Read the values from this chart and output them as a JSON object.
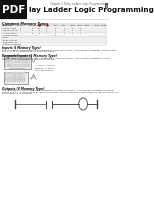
{
  "title": "lay Ladder Logic Programming",
  "chapter_header": "Chapter 4 Relay Ladder Logic Programming",
  "page_num": "8",
  "section1": "Common Memory Types",
  "pdf_label": "PDF",
  "bg_color": "#ffffff",
  "header_bg": "#111111",
  "section2_title": "Inputs (I Memory Type)",
  "section2_text": "The GS digital input points are designated I memory types.  The number of digital I input points\nare 4, 6, or 10 depending on each GS model.",
  "section3_title": "Keypads/Inputs (2 Memory Type)",
  "section3_text": "The GS digital input points are designated 2 memory types.  The number of digital 2 input\npoints are 4 depending on GS10 type model.",
  "section4_title": "Outputs (0 Memory Type)",
  "section4_text": "The GS digital output points are designated O memory types.  The number of digital O output\npoints are 4 or 8 depending on each GS model. In the example, output point 01 will be turned on\nwhen input I1 is enabled.",
  "accent_color": "#cc0000",
  "ladder_color": "#444444",
  "table_line_color": "#bbbbbb",
  "text_color": "#333333",
  "title_color": "#111111"
}
